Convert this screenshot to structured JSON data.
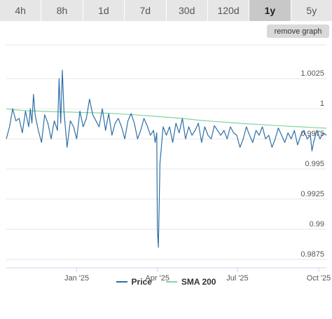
{
  "tabs": [
    {
      "label": "4h",
      "active": false
    },
    {
      "label": "8h",
      "active": false
    },
    {
      "label": "1d",
      "active": false
    },
    {
      "label": "7d",
      "active": false
    },
    {
      "label": "30d",
      "active": false
    },
    {
      "label": "120d",
      "active": false
    },
    {
      "label": "1y",
      "active": true
    },
    {
      "label": "5y",
      "active": false
    }
  ],
  "remove_graph_label": "remove graph",
  "chart_data": {
    "type": "line",
    "y_ticks": [
      "1.0025",
      "1",
      "0.9975",
      "0.995",
      "0.9925",
      "0.99",
      "0.9875"
    ],
    "ylim": [
      0.9868,
      1.0053
    ],
    "x_ticks": [
      {
        "label": "Jan '25",
        "t": 0.22
      },
      {
        "label": "Apr '25",
        "t": 0.472
      },
      {
        "label": "Jul '25",
        "t": 0.722
      },
      {
        "label": "Oct '25",
        "t": 0.976
      }
    ],
    "grid": true,
    "legend_position": "bottom",
    "series": [
      {
        "name": "Price",
        "color": "#2e6fa7",
        "x": [
          0,
          0.01,
          0.02,
          0.03,
          0.04,
          0.05,
          0.06,
          0.07,
          0.075,
          0.08,
          0.085,
          0.09,
          0.1,
          0.11,
          0.12,
          0.13,
          0.14,
          0.15,
          0.16,
          0.165,
          0.17,
          0.175,
          0.18,
          0.19,
          0.2,
          0.21,
          0.22,
          0.23,
          0.24,
          0.25,
          0.26,
          0.27,
          0.28,
          0.29,
          0.3,
          0.31,
          0.32,
          0.33,
          0.34,
          0.35,
          0.36,
          0.37,
          0.38,
          0.39,
          0.4,
          0.41,
          0.42,
          0.43,
          0.44,
          0.45,
          0.46,
          0.465,
          0.47,
          0.472,
          0.475,
          0.48,
          0.49,
          0.5,
          0.51,
          0.52,
          0.53,
          0.54,
          0.55,
          0.56,
          0.57,
          0.58,
          0.59,
          0.6,
          0.61,
          0.62,
          0.63,
          0.64,
          0.65,
          0.66,
          0.67,
          0.68,
          0.69,
          0.7,
          0.71,
          0.72,
          0.73,
          0.74,
          0.75,
          0.76,
          0.77,
          0.78,
          0.79,
          0.8,
          0.81,
          0.82,
          0.83,
          0.84,
          0.85,
          0.86,
          0.87,
          0.88,
          0.89,
          0.9,
          0.91,
          0.92,
          0.93,
          0.94,
          0.95,
          0.955,
          0.96,
          0.97,
          0.98,
          0.99,
          1
        ],
        "y": [
          0.9975,
          0.9985,
          1.0,
          0.999,
          0.9992,
          0.998,
          0.9998,
          0.9985,
          1.0,
          0.9988,
          1.0012,
          0.9995,
          0.9982,
          0.9972,
          0.9995,
          0.9988,
          0.9975,
          0.999,
          0.9982,
          1.0025,
          0.9988,
          1.0032,
          0.9998,
          0.9968,
          0.999,
          0.9985,
          0.9975,
          0.9998,
          0.9985,
          0.9992,
          1.0008,
          0.9995,
          0.999,
          0.9985,
          1.0,
          0.9982,
          0.9996,
          0.9978,
          0.9988,
          0.9992,
          0.9985,
          0.9975,
          0.999,
          0.9996,
          0.9988,
          0.9975,
          0.9982,
          0.9992,
          0.9986,
          0.9978,
          0.9982,
          0.9972,
          0.998,
          0.99,
          0.9885,
          0.9955,
          0.9985,
          0.9978,
          0.9985,
          0.9972,
          0.9988,
          0.998,
          0.9992,
          0.9975,
          0.9985,
          0.9978,
          0.9982,
          0.9988,
          0.9972,
          0.9985,
          0.9978,
          0.9975,
          0.9986,
          0.9982,
          0.9978,
          0.9982,
          0.9975,
          0.9985,
          0.998,
          0.9978,
          0.9968,
          0.9975,
          0.9985,
          0.9978,
          0.9972,
          0.9982,
          0.9978,
          0.9985,
          0.9975,
          0.9978,
          0.9968,
          0.9975,
          0.9984,
          0.9978,
          0.9972,
          0.998,
          0.9975,
          0.9982,
          0.997,
          0.9978,
          0.9982,
          0.9975,
          0.9978,
          0.9965,
          0.9972,
          0.9982,
          0.9975,
          0.998,
          0.9978
        ]
      },
      {
        "name": "SMA 200",
        "color": "#7ed6a0",
        "x": [
          0,
          0.05,
          0.1,
          0.15,
          0.2,
          0.25,
          0.3,
          0.35,
          0.4,
          0.45,
          0.5,
          0.55,
          0.6,
          0.65,
          0.7,
          0.75,
          0.8,
          0.85,
          0.9,
          0.95,
          1
        ],
        "y": [
          1.0,
          0.99985,
          0.9998,
          0.99975,
          0.99972,
          0.99968,
          0.99965,
          0.99958,
          0.9995,
          0.9994,
          0.9993,
          0.9992,
          0.99905,
          0.99895,
          0.99885,
          0.99875,
          0.99868,
          0.9986,
          0.99852,
          0.99845,
          0.99838
        ]
      }
    ]
  }
}
